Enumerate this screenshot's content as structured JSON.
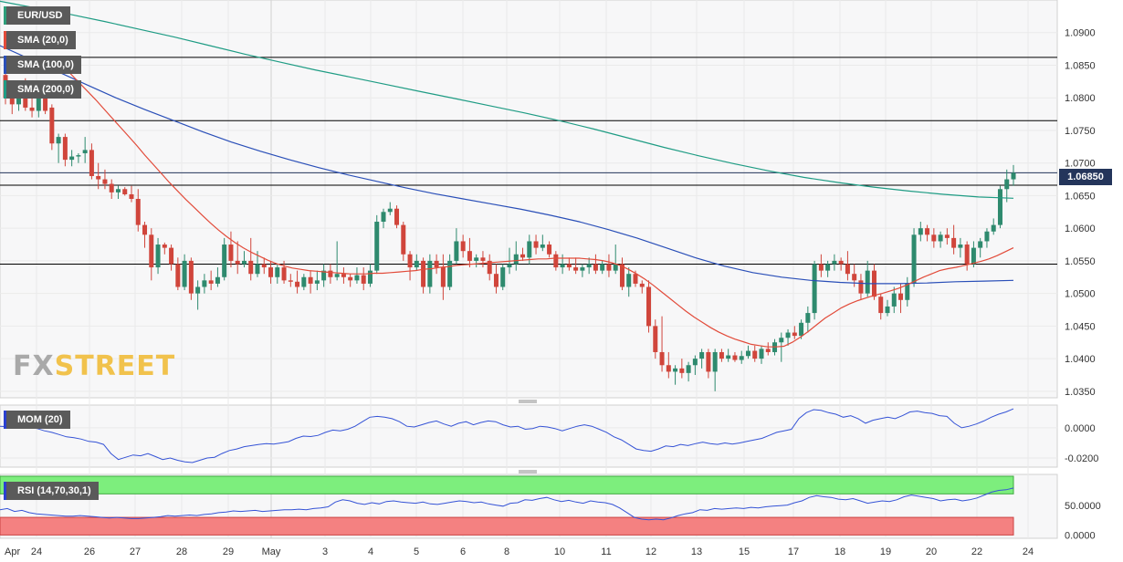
{
  "chart_data": {
    "type": "candlestick",
    "symbol": "EUR/USD",
    "indicators": {
      "sma20": {
        "name": "SMA (20,0)",
        "color": "#e24b3a"
      },
      "sma100": {
        "name": "SMA (100,0)",
        "color": "#2a4fb8"
      },
      "sma200": {
        "name": "SMA (200,0)",
        "color": "#1f9c84"
      }
    },
    "price_axis": {
      "ticks": [
        "1.0900",
        "1.0850",
        "1.0800",
        "1.0750",
        "1.0700",
        "1.0650",
        "1.0600",
        "1.0550",
        "1.0500",
        "1.0450",
        "1.0400",
        "1.0350"
      ],
      "range": [
        1.034,
        1.095
      ]
    },
    "last_price": "1.06850",
    "horizontal_lines": [
      1.0862,
      1.0765,
      1.0685,
      1.0666,
      1.0545
    ],
    "x_labels": [
      "Apr",
      "24",
      "26",
      "27",
      "28",
      "29",
      "May",
      "3",
      "4",
      "5",
      "6",
      "8",
      "10",
      "11",
      "12",
      "13",
      "15",
      "17",
      "18",
      "19",
      "20",
      "22",
      "24"
    ],
    "candles": [
      [
        1.0835,
        1.086,
        1.079,
        1.08
      ],
      [
        1.08,
        1.0815,
        1.0775,
        1.079
      ],
      [
        1.079,
        1.082,
        1.078,
        1.081
      ],
      [
        1.081,
        1.083,
        1.078,
        1.0785
      ],
      [
        1.0785,
        1.08,
        1.077,
        1.078
      ],
      [
        1.078,
        1.081,
        1.077,
        1.08
      ],
      [
        1.08,
        1.0812,
        1.0775,
        1.078
      ],
      [
        1.0785,
        1.079,
        1.072,
        1.073
      ],
      [
        1.073,
        1.0745,
        1.07,
        1.074
      ],
      [
        1.074,
        1.0745,
        1.0695,
        1.0705
      ],
      [
        1.0705,
        1.072,
        1.0695,
        1.071
      ],
      [
        1.071,
        1.0715,
        1.07,
        1.0712
      ],
      [
        1.0715,
        1.074,
        1.07,
        1.072
      ],
      [
        1.072,
        1.073,
        1.0675,
        1.068
      ],
      [
        1.068,
        1.07,
        1.066,
        1.0675
      ],
      [
        1.0675,
        1.069,
        1.066,
        1.0668
      ],
      [
        1.0668,
        1.0675,
        1.0645,
        1.0655
      ],
      [
        1.0655,
        1.0665,
        1.0645,
        1.066
      ],
      [
        1.066,
        1.0663,
        1.065,
        1.0652
      ],
      [
        1.0652,
        1.0665,
        1.064,
        1.0645
      ],
      [
        1.0645,
        1.066,
        1.0595,
        1.0605
      ],
      [
        1.0605,
        1.061,
        1.057,
        1.059
      ],
      [
        1.059,
        1.06,
        1.052,
        1.054
      ],
      [
        1.054,
        1.0585,
        1.053,
        1.0575
      ],
      [
        1.0575,
        1.0578,
        1.056,
        1.057
      ],
      [
        1.057,
        1.0575,
        1.0535,
        1.0545
      ],
      [
        1.0545,
        1.0555,
        1.0505,
        1.051
      ],
      [
        1.051,
        1.056,
        1.0505,
        1.055
      ],
      [
        1.055,
        1.0555,
        1.049,
        1.05
      ],
      [
        1.05,
        1.052,
        1.0475,
        1.051
      ],
      [
        1.051,
        1.053,
        1.05,
        1.052
      ],
      [
        1.052,
        1.0535,
        1.0505,
        1.0515
      ],
      [
        1.0515,
        1.054,
        1.051,
        1.0525
      ],
      [
        1.0525,
        1.0585,
        1.052,
        1.0575
      ],
      [
        1.0575,
        1.0595,
        1.054,
        1.055
      ],
      [
        1.055,
        1.058,
        1.053,
        1.0545
      ],
      [
        1.0545,
        1.0565,
        1.054,
        1.055
      ],
      [
        1.055,
        1.0585,
        1.052,
        1.053
      ],
      [
        1.053,
        1.0565,
        1.0525,
        1.0545
      ],
      [
        1.0545,
        1.0555,
        1.053,
        1.054
      ],
      [
        1.054,
        1.055,
        1.0515,
        1.0525
      ],
      [
        1.0525,
        1.0545,
        1.0515,
        1.054
      ],
      [
        1.054,
        1.055,
        1.0515,
        1.052
      ],
      [
        1.052,
        1.053,
        1.051,
        1.0518
      ],
      [
        1.0518,
        1.0535,
        1.05,
        1.051
      ],
      [
        1.051,
        1.053,
        1.0505,
        1.0525
      ],
      [
        1.0525,
        1.0535,
        1.05,
        1.0515
      ],
      [
        1.0515,
        1.0535,
        1.0505,
        1.052
      ],
      [
        1.052,
        1.0545,
        1.051,
        1.0535
      ],
      [
        1.0535,
        1.0545,
        1.0515,
        1.0525
      ],
      [
        1.0525,
        1.058,
        1.052,
        1.053
      ],
      [
        1.053,
        1.054,
        1.0515,
        1.0525
      ],
      [
        1.0525,
        1.053,
        1.051,
        1.052
      ],
      [
        1.052,
        1.054,
        1.0515,
        1.0528
      ],
      [
        1.0528,
        1.054,
        1.0505,
        1.0515
      ],
      [
        1.0515,
        1.0545,
        1.051,
        1.0535
      ],
      [
        1.0535,
        1.062,
        1.053,
        1.061
      ],
      [
        1.061,
        1.063,
        1.06,
        1.0625
      ],
      [
        1.0625,
        1.064,
        1.062,
        1.063
      ],
      [
        1.063,
        1.0635,
        1.06,
        1.0605
      ],
      [
        1.0605,
        1.061,
        1.055,
        1.056
      ],
      [
        1.056,
        1.0565,
        1.052,
        1.054
      ],
      [
        1.054,
        1.056,
        1.0535,
        1.055
      ],
      [
        1.055,
        1.0555,
        1.05,
        1.051
      ],
      [
        1.051,
        1.056,
        1.05,
        1.055
      ],
      [
        1.055,
        1.056,
        1.053,
        1.054
      ],
      [
        1.054,
        1.056,
        1.049,
        1.051
      ],
      [
        1.051,
        1.056,
        1.0505,
        1.055
      ],
      [
        1.055,
        1.06,
        1.0545,
        1.058
      ],
      [
        1.058,
        1.059,
        1.0555,
        1.0565
      ],
      [
        1.0565,
        1.0585,
        1.054,
        1.055
      ],
      [
        1.055,
        1.056,
        1.054,
        1.0555
      ],
      [
        1.0555,
        1.0565,
        1.054,
        1.055
      ],
      [
        1.055,
        1.056,
        1.052,
        1.053
      ],
      [
        1.053,
        1.0545,
        1.05,
        1.051
      ],
      [
        1.051,
        1.0545,
        1.0505,
        1.054
      ],
      [
        1.054,
        1.057,
        1.053,
        1.0545
      ],
      [
        1.0545,
        1.058,
        1.0535,
        1.056
      ],
      [
        1.056,
        1.057,
        1.055,
        1.0555
      ],
      [
        1.0555,
        1.059,
        1.0545,
        1.058
      ],
      [
        1.058,
        1.059,
        1.056,
        1.057
      ],
      [
        1.057,
        1.059,
        1.0565,
        1.0575
      ],
      [
        1.0575,
        1.058,
        1.0555,
        1.056
      ],
      [
        1.056,
        1.0565,
        1.0535,
        1.054
      ],
      [
        1.054,
        1.056,
        1.053,
        1.0545
      ],
      [
        1.0545,
        1.0555,
        1.0535,
        1.054
      ],
      [
        1.054,
        1.0555,
        1.053,
        1.0535
      ],
      [
        1.0535,
        1.0545,
        1.0525,
        1.054
      ],
      [
        1.054,
        1.0555,
        1.053,
        1.0545
      ],
      [
        1.0545,
        1.056,
        1.053,
        1.0535
      ],
      [
        1.0535,
        1.055,
        1.053,
        1.0545
      ],
      [
        1.0545,
        1.056,
        1.0525,
        1.0535
      ],
      [
        1.0535,
        1.0575,
        1.053,
        1.0545
      ],
      [
        1.0545,
        1.0555,
        1.0505,
        1.051
      ],
      [
        1.051,
        1.054,
        1.0495,
        1.053
      ],
      [
        1.053,
        1.0535,
        1.051,
        1.0515
      ],
      [
        1.0515,
        1.052,
        1.05,
        1.051
      ],
      [
        1.051,
        1.052,
        1.044,
        1.045
      ],
      [
        1.045,
        1.046,
        1.04,
        1.041
      ],
      [
        1.041,
        1.0465,
        1.038,
        1.039
      ],
      [
        1.039,
        1.041,
        1.037,
        1.038
      ],
      [
        1.038,
        1.039,
        1.036,
        1.0385
      ],
      [
        1.0385,
        1.04,
        1.037,
        1.0378
      ],
      [
        1.0378,
        1.0395,
        1.0365,
        1.039
      ],
      [
        1.039,
        1.0405,
        1.0375,
        1.04
      ],
      [
        1.04,
        1.0415,
        1.0385,
        1.041
      ],
      [
        1.041,
        1.0415,
        1.037,
        1.038
      ],
      [
        1.038,
        1.0415,
        1.035,
        1.041
      ],
      [
        1.041,
        1.0415,
        1.0395,
        1.04
      ],
      [
        1.04,
        1.0415,
        1.0395,
        1.0405
      ],
      [
        1.0405,
        1.041,
        1.0395,
        1.0398
      ],
      [
        1.0398,
        1.0412,
        1.0392,
        1.0404
      ],
      [
        1.0404,
        1.042,
        1.04,
        1.0412
      ],
      [
        1.0412,
        1.042,
        1.0395,
        1.04
      ],
      [
        1.04,
        1.042,
        1.0392,
        1.0415
      ],
      [
        1.0415,
        1.0425,
        1.0405,
        1.041
      ],
      [
        1.041,
        1.043,
        1.0405,
        1.0425
      ],
      [
        1.0425,
        1.044,
        1.0395,
        1.0432
      ],
      [
        1.0432,
        1.0445,
        1.042,
        1.044
      ],
      [
        1.044,
        1.045,
        1.043,
        1.0435
      ],
      [
        1.0435,
        1.046,
        1.043,
        1.0455
      ],
      [
        1.0455,
        1.048,
        1.044,
        1.047
      ],
      [
        1.047,
        1.055,
        1.046,
        1.0545
      ],
      [
        1.0545,
        1.056,
        1.0525,
        1.0535
      ],
      [
        1.0535,
        1.055,
        1.0525,
        1.0545
      ],
      [
        1.0545,
        1.056,
        1.0535,
        1.055
      ],
      [
        1.055,
        1.0555,
        1.0535,
        1.0545
      ],
      [
        1.0545,
        1.0565,
        1.052,
        1.053
      ],
      [
        1.053,
        1.0545,
        1.051,
        1.052
      ],
      [
        1.052,
        1.053,
        1.049,
        1.05
      ],
      [
        1.05,
        1.055,
        1.0495,
        1.0535
      ],
      [
        1.0535,
        1.0545,
        1.049,
        1.0495
      ],
      [
        1.0495,
        1.05,
        1.046,
        1.047
      ],
      [
        1.047,
        1.049,
        1.0465,
        1.048
      ],
      [
        1.048,
        1.051,
        1.047,
        1.05
      ],
      [
        1.05,
        1.0515,
        1.047,
        1.049
      ],
      [
        1.049,
        1.0525,
        1.048,
        1.0515
      ],
      [
        1.0515,
        1.06,
        1.051,
        1.059
      ],
      [
        1.059,
        1.061,
        1.058,
        1.06
      ],
      [
        1.06,
        1.0605,
        1.058,
        1.059
      ],
      [
        1.059,
        1.06,
        1.057,
        1.058
      ],
      [
        1.058,
        1.0595,
        1.057,
        1.059
      ],
      [
        1.059,
        1.06,
        1.0575,
        1.0585
      ],
      [
        1.0585,
        1.0605,
        1.056,
        1.057
      ],
      [
        1.057,
        1.0585,
        1.0555,
        1.0575
      ],
      [
        1.0575,
        1.058,
        1.0535,
        1.0545
      ],
      [
        1.0545,
        1.058,
        1.054,
        1.057
      ],
      [
        1.057,
        1.0585,
        1.0555,
        1.058
      ],
      [
        1.058,
        1.06,
        1.057,
        1.0595
      ],
      [
        1.0595,
        1.0615,
        1.059,
        1.0605
      ],
      [
        1.0605,
        1.0665,
        1.06,
        1.066
      ],
      [
        1.066,
        1.069,
        1.064,
        1.0675
      ],
      [
        1.0675,
        1.0697,
        1.0665,
        1.0685
      ]
    ],
    "sma20_values": [
      1.086,
      1.0848,
      1.0836,
      1.0823,
      1.081,
      1.0797,
      1.0783,
      1.0769,
      1.0755,
      1.0741,
      1.0727,
      1.0712,
      1.0698,
      1.0684,
      1.067,
      1.0657,
      1.0644,
      1.0632,
      1.062,
      1.0608,
      1.0597,
      1.0587,
      1.0578,
      1.057,
      1.0563,
      1.0557,
      1.0551,
      1.0546,
      1.0542,
      1.0539,
      1.0537,
      1.0535,
      1.0534,
      1.0533,
      1.0532,
      1.0531,
      1.053,
      1.053,
      1.053,
      1.0531,
      1.0531,
      1.0532,
      1.0533,
      1.0534,
      1.0535,
      1.0537,
      1.0538,
      1.054,
      1.0541,
      1.0543,
      1.0544,
      1.0545,
      1.0546,
      1.0547,
      1.0548,
      1.0549,
      1.055,
      1.0551,
      1.0552,
      1.0553,
      1.0553,
      1.0554,
      1.0554,
      1.0554,
      1.0554,
      1.0553,
      1.0552,
      1.055,
      1.0547,
      1.0543,
      1.0537,
      1.053,
      1.0522,
      1.0513,
      1.0503,
      1.0493,
      1.0483,
      1.0473,
      1.0464,
      1.0456,
      1.0448,
      1.0441,
      1.0435,
      1.043,
      1.0426,
      1.0422,
      1.042,
      1.0418,
      1.0418,
      1.0419,
      1.0425,
      1.0433,
      1.0442,
      1.0452,
      1.0462,
      1.047,
      1.0478,
      1.0484,
      1.0489,
      1.0493,
      1.0497,
      1.05,
      1.0504,
      1.0508,
      1.0513,
      1.0519,
      1.0525,
      1.053,
      1.0535,
      1.0538,
      1.054,
      1.0543,
      1.0546,
      1.0549,
      1.0553,
      1.0558,
      1.0564,
      1.057
    ],
    "sma100_values": [
      1.088,
      1.086,
      1.084,
      1.082,
      1.08,
      1.0782,
      1.0765,
      1.0748,
      1.0732,
      1.0718,
      1.0705,
      1.0693,
      1.0682,
      1.0672,
      1.0662,
      1.0653,
      1.0645,
      1.0637,
      1.0629,
      1.062,
      1.061,
      1.0598,
      1.0585,
      1.057,
      1.0555,
      1.0542,
      1.0532,
      1.0525,
      1.052,
      1.0517,
      1.0515,
      1.0515,
      1.0516,
      1.0518,
      1.0519,
      1.052
    ],
    "sma200_values": [
      1.0948,
      1.0938,
      1.0928,
      1.0917,
      1.0905,
      1.0893,
      1.088,
      1.0867,
      1.0855,
      1.0843,
      1.0832,
      1.0821,
      1.081,
      1.0799,
      1.0788,
      1.0777,
      1.0765,
      1.0752,
      1.0738,
      1.0724,
      1.0711,
      1.0699,
      1.0688,
      1.0678,
      1.067,
      1.0663,
      1.0657,
      1.0652,
      1.0648,
      1.0646
    ],
    "momentum": {
      "name": "MOM (20)",
      "ticks": [
        "0.0000",
        "-0.0200"
      ],
      "range": [
        -0.026,
        0.015
      ],
      "values": [
        0.001,
        0.0008,
        0.0005,
        0.0012,
        0.0006,
        -0.0005,
        -0.002,
        -0.003,
        -0.0045,
        -0.006,
        -0.0065,
        -0.0075,
        -0.009,
        -0.0095,
        -0.011,
        -0.017,
        -0.021,
        -0.0195,
        -0.018,
        -0.0185,
        -0.017,
        -0.019,
        -0.021,
        -0.02,
        -0.0215,
        -0.0225,
        -0.023,
        -0.0215,
        -0.02,
        -0.0195,
        -0.017,
        -0.015,
        -0.014,
        -0.0125,
        -0.0118,
        -0.011,
        -0.0105,
        -0.0108,
        -0.01,
        -0.0092,
        -0.007,
        -0.0055,
        -0.0058,
        -0.005,
        -0.003,
        -0.0015,
        -0.002,
        -0.001,
        0.001,
        0.004,
        0.007,
        0.0075,
        0.007,
        0.006,
        0.004,
        0.001,
        0.0005,
        0.002,
        0.0035,
        0.0045,
        0.0025,
        0.001,
        0.003,
        0.004,
        0.002,
        0.0035,
        0.0045,
        0.004,
        0.002,
        0.0005,
        0.001,
        -0.001,
        -0.0005,
        0.001,
        0.0005,
        -0.0005,
        -0.002,
        -0.0005,
        0.001,
        0.002,
        0.001,
        -0.001,
        -0.003,
        -0.006,
        -0.008,
        -0.011,
        -0.014,
        -0.015,
        -0.0155,
        -0.014,
        -0.012,
        -0.0125,
        -0.011,
        -0.0118,
        -0.0105,
        -0.0095,
        -0.0105,
        -0.011,
        -0.01,
        -0.0108,
        -0.01,
        -0.009,
        -0.008,
        -0.007,
        -0.005,
        -0.003,
        -0.002,
        -0.001,
        0.006,
        0.01,
        0.012,
        0.0115,
        0.01,
        0.009,
        0.007,
        0.008,
        0.006,
        0.003,
        0.005,
        0.006,
        0.007,
        0.006,
        0.008,
        0.0105,
        0.011,
        0.01,
        0.0095,
        0.008,
        0.0075,
        0.003,
        0.0,
        0.001,
        0.0025,
        0.0045,
        0.007,
        0.009,
        0.0105,
        0.0125
      ]
    },
    "rsi": {
      "name": "RSI (14,70,30,1)",
      "ticks": [
        "50.0000",
        "0.0000"
      ],
      "range": [
        0,
        100
      ],
      "overbought": 70,
      "oversold": 30,
      "values": [
        43,
        45,
        40,
        42,
        38,
        36,
        35,
        34,
        33,
        32,
        32,
        33,
        32,
        31,
        30,
        29,
        30,
        29,
        28,
        28,
        29,
        30,
        31,
        33,
        32,
        33,
        34,
        33,
        35,
        36,
        38,
        39,
        41,
        40,
        41,
        42,
        40,
        41,
        42,
        43,
        43,
        44,
        43,
        45,
        46,
        48,
        56,
        60,
        58,
        54,
        52,
        55,
        53,
        57,
        58,
        56,
        55,
        54,
        56,
        53,
        52,
        54,
        56,
        58,
        57,
        55,
        56,
        53,
        51,
        49,
        54,
        55,
        60,
        59,
        62,
        64,
        60,
        57,
        59,
        56,
        54,
        58,
        56,
        55,
        52,
        46,
        38,
        30,
        27,
        26,
        27,
        26,
        29,
        33,
        36,
        38,
        43,
        42,
        45,
        44,
        45,
        46,
        45,
        47,
        46,
        48,
        49,
        50,
        51,
        55,
        58,
        64,
        67,
        65,
        64,
        61,
        60,
        62,
        58,
        54,
        56,
        58,
        57,
        60,
        65,
        68,
        66,
        64,
        62,
        58,
        60,
        61,
        58,
        60,
        63,
        68,
        73,
        76,
        77,
        80
      ]
    }
  }
}
